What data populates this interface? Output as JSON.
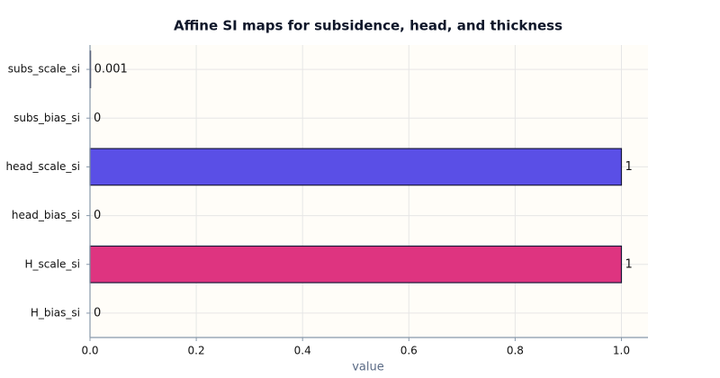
{
  "chart_data": {
    "type": "bar",
    "orientation": "horizontal",
    "title": "Affine SI maps for subsidence, head, and thickness",
    "x_label": "value",
    "categories": [
      "subs_scale_si",
      "subs_bias_si",
      "head_scale_si",
      "head_bias_si",
      "H_scale_si",
      "H_bias_si"
    ],
    "values": [
      0.001,
      0,
      1,
      0,
      1,
      0
    ],
    "colors": [
      "#3b5bdb",
      "#3b5bdb",
      "#5a4fe6",
      "#de3480",
      "#de3480",
      "#de3480"
    ],
    "xlim": [
      0,
      1.05
    ],
    "xticks": [
      {
        "value": 0,
        "label": "0.0"
      },
      {
        "value": 0.2,
        "label": "0.2"
      },
      {
        "value": 0.4,
        "label": "0.4"
      },
      {
        "value": 0.6,
        "label": "0.6"
      },
      {
        "value": 0.8,
        "label": "0.8"
      },
      {
        "value": 1,
        "label": "1.0"
      }
    ],
    "grid": true
  }
}
